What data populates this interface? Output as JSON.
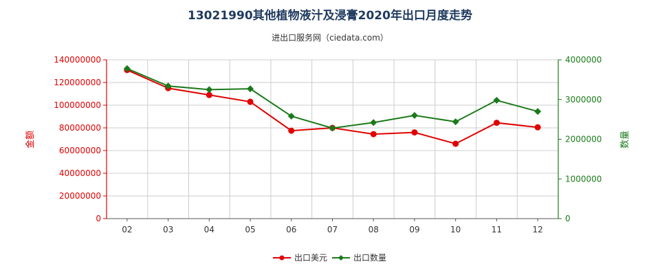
{
  "title": "13021990其他植物液汁及浸膏2020年出口月度走势",
  "subtitle": "进出口服务网（ciedata.com）",
  "colors": {
    "left_axis": "#e00000",
    "right_axis": "#1a7a1a",
    "grid": "#cccccc"
  },
  "chart_data": {
    "type": "line",
    "x": [
      "02",
      "03",
      "04",
      "05",
      "06",
      "07",
      "08",
      "09",
      "10",
      "11",
      "12"
    ],
    "y_left_label": "金额",
    "y_right_label": "数量",
    "y_left_lim": [
      0,
      140000000
    ],
    "y_right_lim": [
      0,
      4000000
    ],
    "y_left_ticks": [
      "0",
      "20000000",
      "40000000",
      "60000000",
      "80000000",
      "100000000",
      "120000000",
      "140000000"
    ],
    "y_right_ticks": [
      "0",
      "1000000",
      "2000000",
      "3000000",
      "4000000"
    ],
    "series": [
      {
        "name": "出口美元",
        "axis": "left",
        "color": "#e00000",
        "marker": "circle",
        "values": [
          131000000,
          115000000,
          109000000,
          103000000,
          77500000,
          80000000,
          74500000,
          76000000,
          66000000,
          84500000,
          80500000
        ]
      },
      {
        "name": "出口数量",
        "axis": "right",
        "color": "#1a7a1a",
        "marker": "diamond",
        "values": [
          3780000,
          3340000,
          3250000,
          3270000,
          2580000,
          2280000,
          2420000,
          2600000,
          2440000,
          2980000,
          2700000
        ]
      }
    ],
    "grid": true,
    "legend_position": "bottom"
  }
}
